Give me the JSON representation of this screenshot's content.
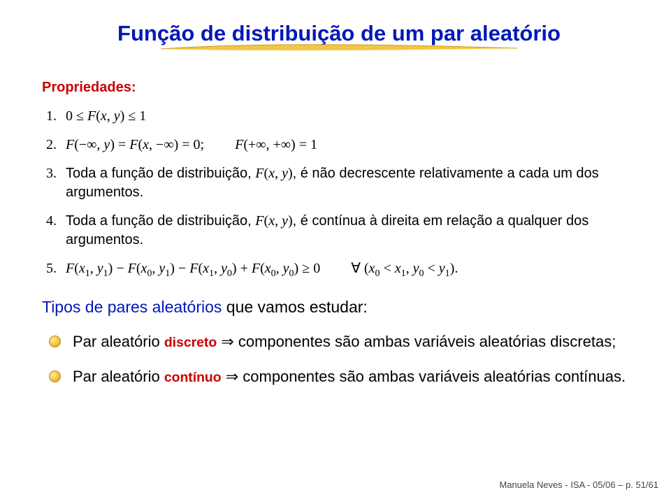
{
  "colors": {
    "title": "#0018b8",
    "intro_blue": "#0018b8",
    "red": "#c80000",
    "swoosh_yellow": "#f2c744",
    "swoosh_edge": "#c99a1e",
    "text": "#000000"
  },
  "title": "Função de distribuição de um par aleatório",
  "section_label": "Propriedades:",
  "properties": [
    {
      "n": "1.",
      "html": "<span class='mathup'>0 ≤ </span><span class='math'>F</span><span class='mathup'>(</span><span class='math'>x</span><span class='mathup'>, </span><span class='math'>y</span><span class='mathup'>) ≤ 1</span>"
    },
    {
      "n": "2.",
      "html": "<span class='math'>F</span><span class='mathup'>(−∞, </span><span class='math'>y</span><span class='mathup'>) = </span><span class='math'>F</span><span class='mathup'>(</span><span class='math'>x</span><span class='mathup'>, −∞) = 0;</span><span class='gap'></span><span class='math'>F</span><span class='mathup'>(+∞, +∞) = 1</span>"
    },
    {
      "n": "3.",
      "html": "<span class='sans'>Toda a função de distribuição, </span><span class='math'>F</span><span class='mathup'>(</span><span class='math'>x</span><span class='mathup'>, </span><span class='math'>y</span><span class='mathup'>)</span><span class='sans'>, é não decrescente relativamente a cada um dos argumentos.</span>"
    },
    {
      "n": "4.",
      "html": "<span class='sans'>Toda a função de distribuição, </span><span class='math'>F</span><span class='mathup'>(</span><span class='math'>x</span><span class='mathup'>, </span><span class='math'>y</span><span class='mathup'>)</span><span class='sans'>, é contínua à direita em relação a qualquer dos argumentos.</span>"
    },
    {
      "n": "5.",
      "html": "<span class='math'>F</span><span class='mathup'>(</span><span class='math'>x</span><span class='sub noi'>1</span><span class='mathup'>, </span><span class='math'>y</span><span class='sub noi'>1</span><span class='mathup'>)</span> <span class='mathup'>−</span> <span class='math'>F</span><span class='mathup'>(</span><span class='math'>x</span><span class='sub noi'>0</span><span class='mathup'>, </span><span class='math'>y</span><span class='sub noi'>1</span><span class='mathup'>)</span> <span class='mathup'>−</span> <span class='math'>F</span><span class='mathup'>(</span><span class='math'>x</span><span class='sub noi'>1</span><span class='mathup'>, </span><span class='math'>y</span><span class='sub noi'>0</span><span class='mathup'>)</span> <span class='mathup'>+</span> <span class='math'>F</span><span class='mathup'>(</span><span class='math'>x</span><span class='sub noi'>0</span><span class='mathup'>, </span><span class='math'>y</span><span class='sub noi'>0</span><span class='mathup'>)</span> <span class='mathup'>≥ 0</span><span class='gap'></span><span class='mathup'>∀ (</span><span class='math'>x</span><span class='sub noi'>0</span> <span class='mathup'>&lt;</span> <span class='math'>x</span><span class='sub noi'>1</span><span class='mathup'>, </span><span class='math'>y</span><span class='sub noi'>0</span> <span class='mathup'>&lt;</span> <span class='math'>y</span><span class='sub noi'>1</span><span class='mathup'>).</span>"
    }
  ],
  "intro_prefix": "Tipos de pares aleatórios",
  "intro_rest": " que vamos estudar:",
  "bullets": [
    {
      "pre": "Par aleatório ",
      "kw": "discreto",
      "post": " ⇒ componentes são ambas variáveis aleatórias discretas;"
    },
    {
      "pre": "Par aleatório ",
      "kw": "contínuo",
      "post": " ⇒ componentes são ambas variáveis aleatórias contínuas."
    }
  ],
  "footer": "Manuela Neves - ISA - 05/06 – p. 51/61"
}
